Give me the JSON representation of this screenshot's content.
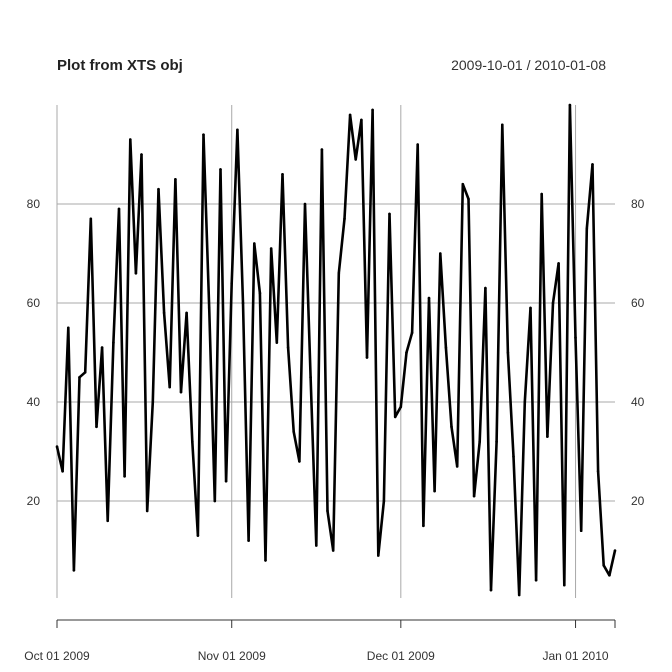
{
  "chart_data": {
    "type": "line",
    "title": "Plot from XTS obj",
    "date_range_label": "2009-10-01 / 2010-01-08",
    "xlabel": "",
    "ylabel": "",
    "x_start": "2009-10-01",
    "x_end": "2010-01-08",
    "x_ticks": [
      {
        "date": "2009-10-01",
        "label": "Oct 01 2009"
      },
      {
        "date": "2009-11-01",
        "label": "Nov 01 2009"
      },
      {
        "date": "2009-12-01",
        "label": "Dec 01 2009"
      },
      {
        "date": "2010-01-01",
        "label": "Jan 01 2010"
      }
    ],
    "y_ticks": [
      20,
      40,
      60,
      80
    ],
    "ylim": [
      0,
      100
    ],
    "grid": true,
    "series": [
      {
        "color": "#000000",
        "x": [
          "2009-10-01",
          "2009-10-02",
          "2009-10-03",
          "2009-10-04",
          "2009-10-05",
          "2009-10-06",
          "2009-10-07",
          "2009-10-08",
          "2009-10-09",
          "2009-10-10",
          "2009-10-11",
          "2009-10-12",
          "2009-10-13",
          "2009-10-14",
          "2009-10-15",
          "2009-10-16",
          "2009-10-17",
          "2009-10-18",
          "2009-10-19",
          "2009-10-20",
          "2009-10-21",
          "2009-10-22",
          "2009-10-23",
          "2009-10-24",
          "2009-10-25",
          "2009-10-26",
          "2009-10-27",
          "2009-10-28",
          "2009-10-29",
          "2009-10-30",
          "2009-10-31",
          "2009-11-01",
          "2009-11-02",
          "2009-11-03",
          "2009-11-04",
          "2009-11-05",
          "2009-11-06",
          "2009-11-07",
          "2009-11-08",
          "2009-11-09",
          "2009-11-10",
          "2009-11-11",
          "2009-11-12",
          "2009-11-13",
          "2009-11-14",
          "2009-11-15",
          "2009-11-16",
          "2009-11-17",
          "2009-11-18",
          "2009-11-19",
          "2009-11-20",
          "2009-11-21",
          "2009-11-22",
          "2009-11-23",
          "2009-11-24",
          "2009-11-25",
          "2009-11-26",
          "2009-11-27",
          "2009-11-28",
          "2009-11-29",
          "2009-11-30",
          "2009-12-01",
          "2009-12-02",
          "2009-12-03",
          "2009-12-04",
          "2009-12-05",
          "2009-12-06",
          "2009-12-07",
          "2009-12-08",
          "2009-12-09",
          "2009-12-10",
          "2009-12-11",
          "2009-12-12",
          "2009-12-13",
          "2009-12-14",
          "2009-12-15",
          "2009-12-16",
          "2009-12-17",
          "2009-12-18",
          "2009-12-19",
          "2009-12-20",
          "2009-12-21",
          "2009-12-22",
          "2009-12-23",
          "2009-12-24",
          "2009-12-25",
          "2009-12-26",
          "2009-12-27",
          "2009-12-28",
          "2009-12-29",
          "2009-12-30",
          "2009-12-31",
          "2010-01-01",
          "2010-01-02",
          "2010-01-03",
          "2010-01-04",
          "2010-01-05",
          "2010-01-06",
          "2010-01-07",
          "2010-01-08"
        ],
        "values": [
          31,
          26,
          55,
          6,
          45,
          46,
          77,
          35,
          51,
          16,
          52,
          79,
          25,
          93,
          66,
          90,
          18,
          40,
          83,
          58,
          43,
          85,
          42,
          58,
          32,
          13,
          94,
          59,
          20,
          87,
          24,
          64,
          95,
          60,
          12,
          72,
          62,
          8,
          71,
          52,
          86,
          51,
          34,
          28,
          80,
          45,
          11,
          91,
          18,
          10,
          66,
          77,
          98,
          89,
          97,
          49,
          99,
          9,
          20,
          78,
          37,
          39,
          50,
          54,
          92,
          15,
          61,
          22,
          70,
          51,
          35,
          27,
          84,
          81,
          21,
          32,
          63,
          2,
          32,
          96,
          50,
          29,
          1,
          40,
          59,
          4,
          82,
          33,
          60,
          68,
          3,
          100,
          53,
          14,
          75,
          88,
          26,
          7,
          5,
          10
        ]
      }
    ]
  }
}
